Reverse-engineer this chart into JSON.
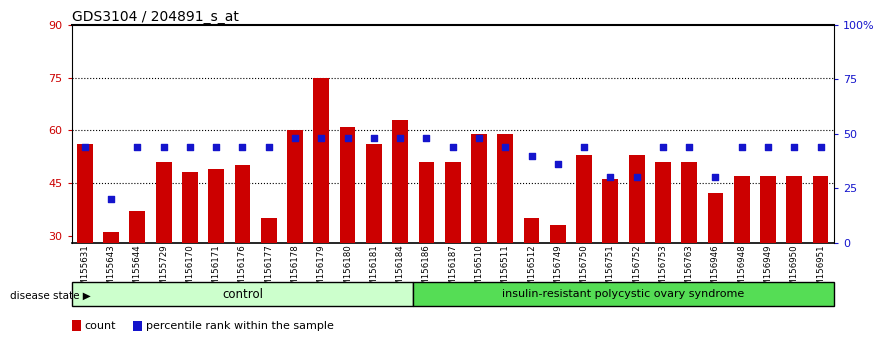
{
  "title": "GDS3104 / 204891_s_at",
  "samples": [
    "GSM155631",
    "GSM155643",
    "GSM155644",
    "GSM155729",
    "GSM156170",
    "GSM156171",
    "GSM156176",
    "GSM156177",
    "GSM156178",
    "GSM156179",
    "GSM156180",
    "GSM156181",
    "GSM156184",
    "GSM156186",
    "GSM156187",
    "GSM156510",
    "GSM156511",
    "GSM156512",
    "GSM156749",
    "GSM156750",
    "GSM156751",
    "GSM156752",
    "GSM156753",
    "GSM156763",
    "GSM156946",
    "GSM156948",
    "GSM156949",
    "GSM156950",
    "GSM156951"
  ],
  "counts": [
    56,
    31,
    37,
    51,
    48,
    49,
    50,
    35,
    60,
    75,
    61,
    56,
    63,
    51,
    51,
    59,
    59,
    35,
    33,
    53,
    46,
    53,
    51,
    51,
    42,
    47,
    47,
    47,
    47
  ],
  "percentiles": [
    44,
    20,
    44,
    44,
    44,
    44,
    44,
    44,
    48,
    48,
    48,
    48,
    48,
    48,
    44,
    48,
    44,
    40,
    36,
    44,
    30,
    30,
    44,
    44,
    30,
    44,
    44,
    44,
    44
  ],
  "n_control": 13,
  "control_label": "control",
  "disease_label": "insulin-resistant polycystic ovary syndrome",
  "bar_color": "#cc0000",
  "dot_color": "#1414cc",
  "ylim_left": [
    28,
    90
  ],
  "ylim_right": [
    0,
    100
  ],
  "yticks_left": [
    30,
    45,
    60,
    75,
    90
  ],
  "yticks_right": [
    0,
    25,
    50,
    75,
    100
  ],
  "ytick_right_labels": [
    "0",
    "25",
    "50",
    "75",
    "100%"
  ],
  "hlines": [
    45,
    60,
    75
  ],
  "bg_color": "#ffffff",
  "tick_area_color": "#d9d9d9",
  "control_bg": "#ccffcc",
  "disease_bg": "#55dd55",
  "legend_count_label": "count",
  "legend_pct_label": "percentile rank within the sample",
  "title_fontsize": 10,
  "tick_fontsize": 8,
  "bar_width": 0.6
}
